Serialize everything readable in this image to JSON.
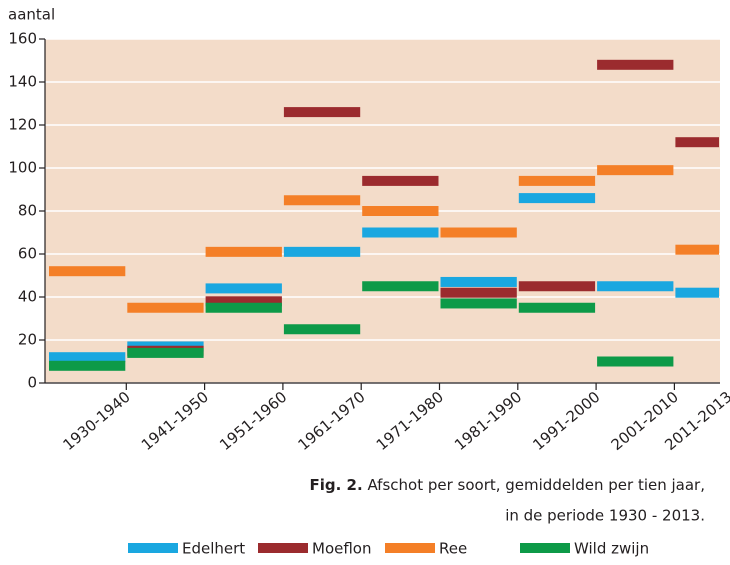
{
  "chart_data": {
    "type": "segment",
    "y_label": "aantal",
    "categories": [
      "1930-1940",
      "1941-1950",
      "1951-1960",
      "1961-1970",
      "1971-1980",
      "1981-1990",
      "1991-2000",
      "2001-2010",
      "2011-2013"
    ],
    "series": [
      {
        "name": "Edelhert",
        "color": "#1aa7e0",
        "values": [
          12,
          17,
          44,
          61,
          70,
          47,
          86,
          45,
          42
        ]
      },
      {
        "name": "Moeflon",
        "color": "#9b2b2e",
        "values": [
          null,
          15,
          38,
          126,
          94,
          42,
          45,
          148,
          112
        ]
      },
      {
        "name": "Ree",
        "color": "#f47f27",
        "values": [
          52,
          35,
          61,
          85,
          80,
          70,
          94,
          99,
          62
        ]
      },
      {
        "name": "Wild zwijn",
        "color": "#0d9a48",
        "values": [
          8,
          14,
          35,
          25,
          45,
          37,
          35,
          10,
          null
        ]
      }
    ],
    "ylim": [
      0,
      160
    ],
    "yticks": [
      0,
      20,
      40,
      60,
      80,
      100,
      120,
      140,
      160
    ],
    "grid": true,
    "caption": [
      "Fig. 2.",
      "Afschot per soort, gemiddelden per tien jaar,",
      "in de periode 1930 - 2013."
    ]
  }
}
